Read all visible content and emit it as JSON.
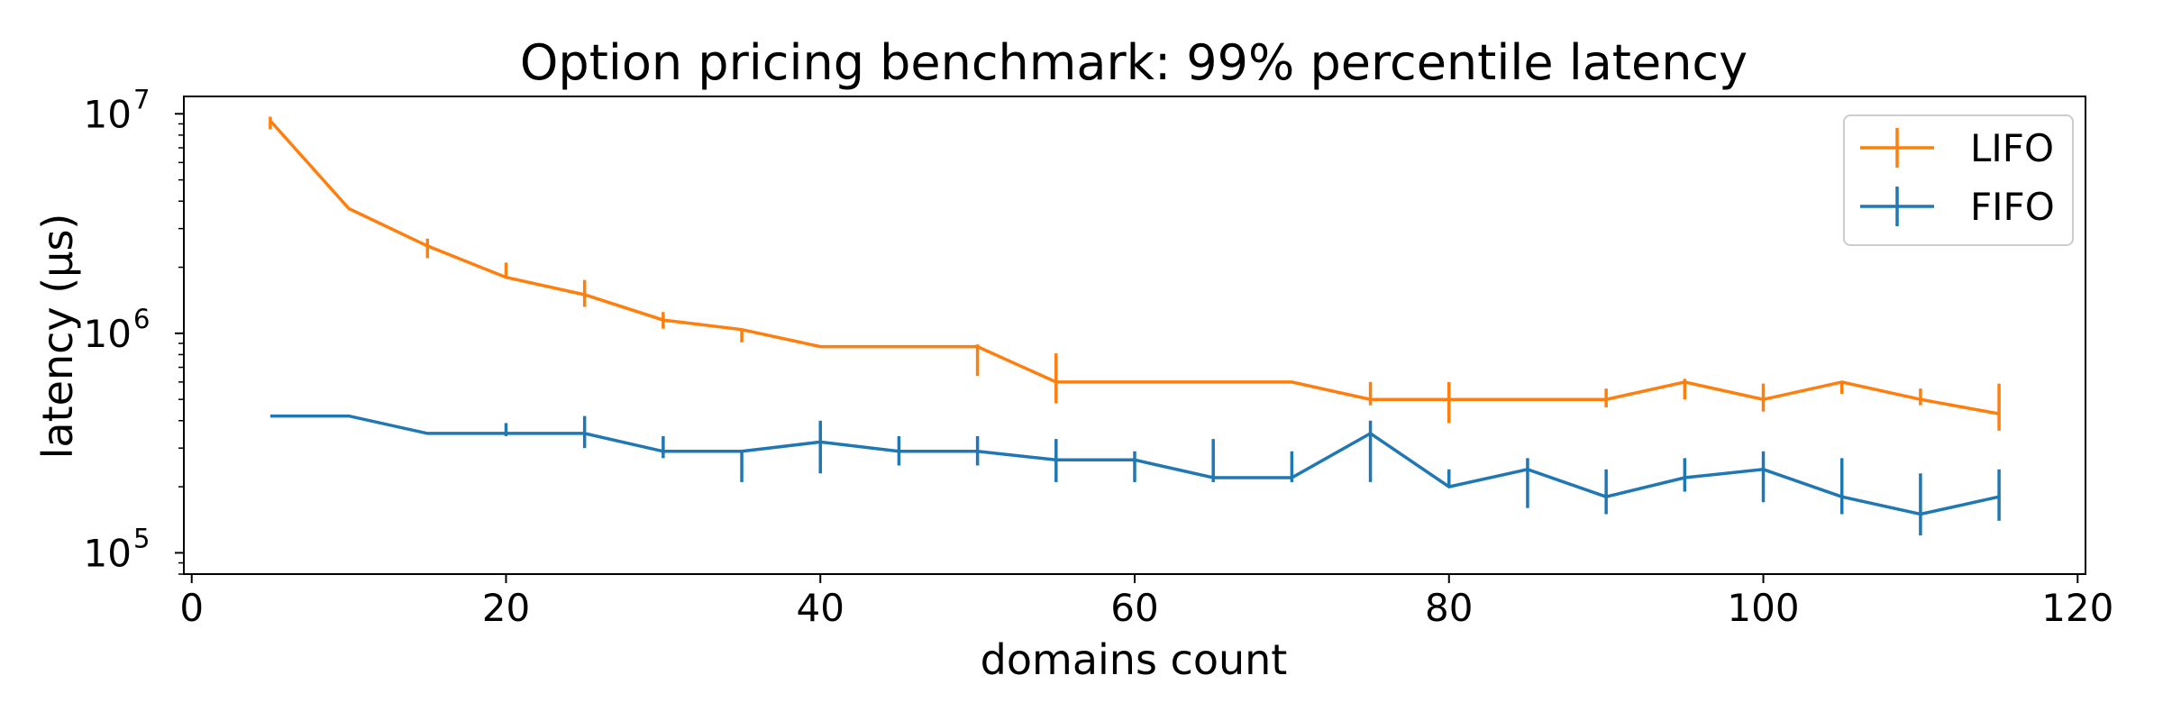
{
  "chart_data": {
    "type": "line",
    "title": "Option pricing benchmark: 99% percentile latency",
    "xlabel": "domains count",
    "ylabel": "latency (µs)",
    "xlim": [
      -0.5,
      120.5
    ],
    "ylim": [
      80000,
      12000000
    ],
    "yscale": "log",
    "x_ticks": [
      0,
      20,
      40,
      60,
      80,
      100,
      120
    ],
    "y_ticks": [
      {
        "value": 100000,
        "base": "10",
        "exp": "5"
      },
      {
        "value": 1000000,
        "base": "10",
        "exp": "6"
      },
      {
        "value": 10000000,
        "base": "10",
        "exp": "7"
      }
    ],
    "grid": false,
    "legend_position": "upper right",
    "series": [
      {
        "name": "LIFO",
        "color": "#ff7f0e",
        "x": [
          5,
          10,
          15,
          20,
          25,
          30,
          35,
          40,
          45,
          50,
          55,
          60,
          65,
          70,
          75,
          80,
          85,
          90,
          95,
          100,
          105,
          110,
          115
        ],
        "y": [
          9300000,
          3700000,
          2500000,
          1800000,
          1500000,
          1150000,
          1040000,
          870000,
          870000,
          870000,
          600000,
          600000,
          600000,
          600000,
          500000,
          500000,
          500000,
          500000,
          600000,
          500000,
          600000,
          500000,
          430000
        ],
        "err_low": [
          8500000,
          3700000,
          2200000,
          1800000,
          1320000,
          1050000,
          910000,
          870000,
          870000,
          640000,
          480000,
          600000,
          600000,
          600000,
          470000,
          390000,
          500000,
          460000,
          500000,
          440000,
          530000,
          470000,
          360000
        ],
        "err_high": [
          9700000,
          3700000,
          2700000,
          2100000,
          1750000,
          1250000,
          1050000,
          870000,
          870000,
          890000,
          810000,
          600000,
          600000,
          600000,
          600000,
          600000,
          500000,
          560000,
          620000,
          590000,
          600000,
          560000,
          590000
        ]
      },
      {
        "name": "FIFO",
        "color": "#1f77b4",
        "x": [
          5,
          10,
          15,
          20,
          25,
          30,
          35,
          40,
          45,
          50,
          55,
          60,
          65,
          70,
          75,
          80,
          85,
          90,
          95,
          100,
          105,
          110,
          115
        ],
        "y": [
          420000,
          420000,
          350000,
          350000,
          350000,
          290000,
          290000,
          320000,
          290000,
          290000,
          265000,
          265000,
          220000,
          220000,
          350000,
          200000,
          240000,
          180000,
          220000,
          240000,
          180000,
          150000,
          180000
        ],
        "err_low": [
          420000,
          420000,
          350000,
          340000,
          300000,
          270000,
          210000,
          230000,
          250000,
          250000,
          210000,
          210000,
          210000,
          210000,
          210000,
          200000,
          160000,
          150000,
          190000,
          170000,
          150000,
          120000,
          140000
        ],
        "err_high": [
          420000,
          420000,
          350000,
          390000,
          420000,
          340000,
          290000,
          400000,
          340000,
          340000,
          330000,
          290000,
          330000,
          290000,
          400000,
          240000,
          270000,
          240000,
          270000,
          290000,
          270000,
          230000,
          240000
        ]
      }
    ]
  }
}
